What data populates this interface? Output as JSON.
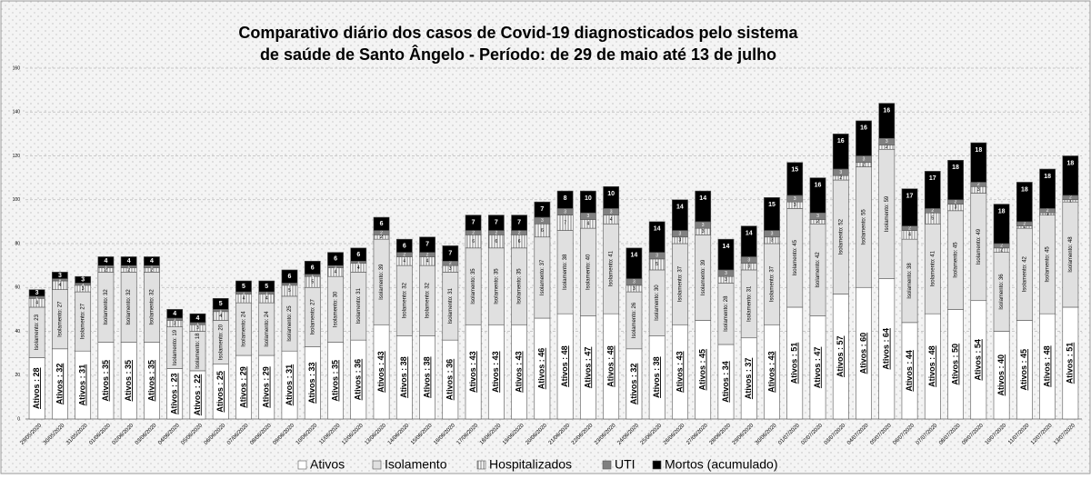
{
  "chart_data": {
    "type": "stacked_bar",
    "title": [
      "Comparativo diário dos casos de Covid-19 diagnosticados pelo sistema",
      "de saúde de Santo Ângelo - Período: de 29 de maio até 13 de julho"
    ],
    "categories": [
      "29/05/2020",
      "30/05/2020",
      "31/05/2020",
      "01/06/2020",
      "02/06/2020",
      "03/06/2020",
      "04/06/2020",
      "05/06/2020",
      "06/06/2020",
      "07/06/2020",
      "08/06/2020",
      "09/06/2020",
      "10/06/2020",
      "11/06/2020",
      "12/06/2020",
      "13/06/2020",
      "14/06/2020",
      "15/06/2020",
      "16/06/2020",
      "17/06/2020",
      "18/06/2020",
      "19/06/2020",
      "20/06/2020",
      "21/06/2020",
      "22/06/2020",
      "23/06/2020",
      "24/06/2020",
      "25/06/2020",
      "26/06/2020",
      "27/06/2020",
      "28/06/2020",
      "29/06/2020",
      "30/06/2020",
      "01/07/2020",
      "02/07/2020",
      "03/07/2020",
      "04/07/2020",
      "05/07/2020",
      "06/07/2020",
      "07/07/2020",
      "08/07/2020",
      "09/07/2020",
      "10/07/2020",
      "11/07/2020",
      "12/07/2020",
      "13/07/2020"
    ],
    "series": [
      {
        "name": "Ativos",
        "color": "#ffffff",
        "values": [
          28,
          32,
          31,
          35,
          35,
          35,
          23,
          22,
          25,
          29,
          29,
          31,
          33,
          35,
          36,
          43,
          38,
          38,
          36,
          43,
          43,
          43,
          46,
          48,
          47,
          48,
          32,
          38,
          43,
          45,
          34,
          37,
          43,
          51,
          47,
          57,
          60,
          64,
          44,
          48,
          50,
          54,
          40,
          45,
          48,
          51
        ],
        "value_labels": [
          "Ativos : 28",
          "Ativos : 32",
          "Ativos : 31",
          "Ativos : 35",
          "Ativos : 35",
          "Ativos : 35",
          "Ativos : 23",
          "Ativos : 22",
          "Ativos : 25",
          "Ativos : 29",
          "Ativos : 29",
          "Ativos : 31",
          "Ativos : 33",
          "Ativos : 35",
          "Ativos : 36",
          "Ativos : 43",
          "Ativos : 38",
          "Ativos : 38",
          "Ativos : 36",
          "Ativos : 43",
          "Ativos : 43",
          "Ativos : 43",
          "Ativos : 46",
          "Ativos : 48",
          "Ativos : 47",
          "Ativos : 48",
          "Ativos : 32",
          "Ativos : 38",
          "Ativos : 43",
          "Ativos : 45",
          "Ativos : 34",
          "Ativos : 37",
          "Ativos : 43",
          "Ativos : 51",
          "Ativos : 47",
          "Ativos : 57",
          "Ativos : 60",
          "Ativos : 64",
          "Ativos : 44",
          "Ativos : 48",
          "Ativos : 50",
          "Ativos : 54",
          "Ativos : 40",
          "Ativos : 45",
          "Ativos : 48",
          "Ativos : 51"
        ]
      },
      {
        "name": "Isolamento",
        "color": "#e0e0e0",
        "values": [
          23,
          27,
          27,
          32,
          32,
          32,
          19,
          18,
          20,
          24,
          24,
          25,
          27,
          30,
          31,
          39,
          32,
          32,
          31,
          35,
          35,
          35,
          37,
          38,
          40,
          41,
          26,
          30,
          37,
          39,
          28,
          31,
          37,
          45,
          42,
          52,
          55,
          59,
          38,
          41,
          45,
          49,
          36,
          42,
          45,
          48
        ],
        "value_labels": [
          "Isolamento: 23",
          "Isolamento: 27",
          "Isolamento: 27",
          "Isolamento: 32",
          "Isolamento: 32",
          "Isolamento: 32",
          "Isolamento: 19",
          "Isolamento: 18",
          "Isolamento: 20",
          "Isolamento: 24",
          "Isolamento: 24",
          "Isolamento: 25",
          "Isolamento: 27",
          "Isolamento: 30",
          "Isolamento: 31",
          "Isolamento: 39",
          "Isolamento: 32",
          "Isolamento: 32",
          "Isolamento: 31",
          "Isolamento: 35",
          "Isolamento: 35",
          "Isolamento: 35",
          "Isolamento: 37",
          "Isolamento: 38",
          "Isolamento: 40",
          "Isolamento: 41",
          "Isolamento: 26",
          "Isolamento: 30",
          "Isolamento: 37",
          "Isolamento: 39",
          "Isolamento: 28",
          "Isolamento: 31",
          "Isolamento: 37",
          "Isolamento: 45",
          "Isolamento: 42",
          "Isolamento: 52",
          "Isolamento: 55",
          "Isolamento: 59",
          "Isolamento: 38",
          "Isolamento: 41",
          "Isolamento: 45",
          "Isolamento: 49",
          "Isolamento: 36",
          "Isolamento: 42",
          "Isolamento: 45",
          "Isolamento: 48"
        ]
      },
      {
        "name": "Hospitalizados",
        "color": "#f7f7f7",
        "values": [
          4,
          4,
          3,
          2,
          2,
          2,
          3,
          3,
          4,
          4,
          4,
          5,
          5,
          4,
          4,
          2,
          4,
          4,
          3,
          6,
          6,
          6,
          6,
          7,
          4,
          4,
          3,
          5,
          3,
          3,
          3,
          3,
          3,
          3,
          2,
          2,
          2,
          2,
          4,
          5,
          3,
          3,
          2,
          1,
          1,
          1
        ]
      },
      {
        "name": "UTI",
        "color": "#808080",
        "values": [
          1,
          1,
          1,
          1,
          1,
          1,
          1,
          1,
          1,
          1,
          1,
          1,
          1,
          1,
          1,
          2,
          2,
          2,
          2,
          2,
          2,
          2,
          3,
          3,
          3,
          3,
          3,
          3,
          3,
          3,
          3,
          3,
          3,
          3,
          3,
          3,
          3,
          3,
          2,
          2,
          2,
          2,
          2,
          2,
          2,
          2
        ]
      },
      {
        "name": "Mortos (acumulado)",
        "color": "#000000",
        "values": [
          3,
          3,
          3,
          4,
          4,
          4,
          4,
          4,
          5,
          5,
          5,
          6,
          6,
          6,
          6,
          6,
          6,
          7,
          7,
          7,
          7,
          7,
          7,
          8,
          10,
          10,
          14,
          14,
          14,
          14,
          14,
          14,
          15,
          15,
          16,
          16,
          16,
          16,
          17,
          17,
          18,
          18,
          18,
          18,
          18,
          18
        ]
      }
    ],
    "ylim": [
      0,
      160
    ],
    "yticks": [
      0,
      20,
      40,
      60,
      80,
      100,
      120,
      140,
      160
    ],
    "grid": true,
    "legend": "bottom"
  }
}
